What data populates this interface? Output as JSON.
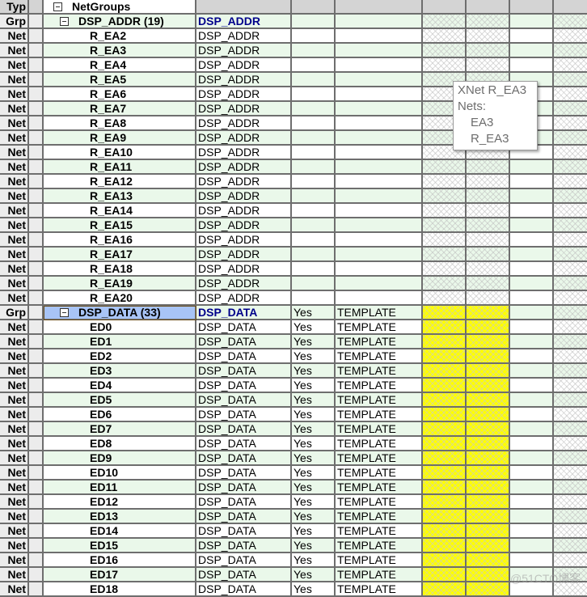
{
  "header": {
    "type_label": "Typ",
    "root_label": "NetGroups"
  },
  "groups": [
    {
      "type": "Grp",
      "name": "DSP_ADDR (19)",
      "group": "DSP_ADDR",
      "col4": "",
      "col5": "",
      "selected": false,
      "highlight": false,
      "members": [
        "R_EA2",
        "R_EA3",
        "R_EA4",
        "R_EA5",
        "R_EA6",
        "R_EA7",
        "R_EA8",
        "R_EA9",
        "R_EA10",
        "R_EA11",
        "R_EA12",
        "R_EA13",
        "R_EA14",
        "R_EA15",
        "R_EA16",
        "R_EA17",
        "R_EA18",
        "R_EA19",
        "R_EA20"
      ],
      "member_type": "Net",
      "member_group": "DSP_ADDR",
      "member_col4": "",
      "member_col5": ""
    },
    {
      "type": "Grp",
      "name": "DSP_DATA (33)",
      "group": "DSP_DATA",
      "col4": "Yes",
      "col5": "TEMPLATE",
      "selected": true,
      "highlight": true,
      "members": [
        "ED0",
        "ED1",
        "ED2",
        "ED3",
        "ED4",
        "ED5",
        "ED6",
        "ED7",
        "ED8",
        "ED9",
        "ED10",
        "ED11",
        "ED12",
        "ED13",
        "ED14",
        "ED15",
        "ED16",
        "ED17",
        "ED18"
      ],
      "member_type": "Net",
      "member_group": "DSP_DATA",
      "member_col4": "Yes",
      "member_col5": "TEMPLATE"
    }
  ],
  "tooltip": {
    "title": "XNet R_EA3",
    "nets_label": "Nets:",
    "nets": [
      "EA3",
      "R_EA3"
    ]
  },
  "colors": {
    "row_alt": "#eaf8ea",
    "highlight": "#ffff00",
    "selected": "#a8c4f6",
    "group_text": "#00008b"
  },
  "watermark": "@51CTO博客"
}
